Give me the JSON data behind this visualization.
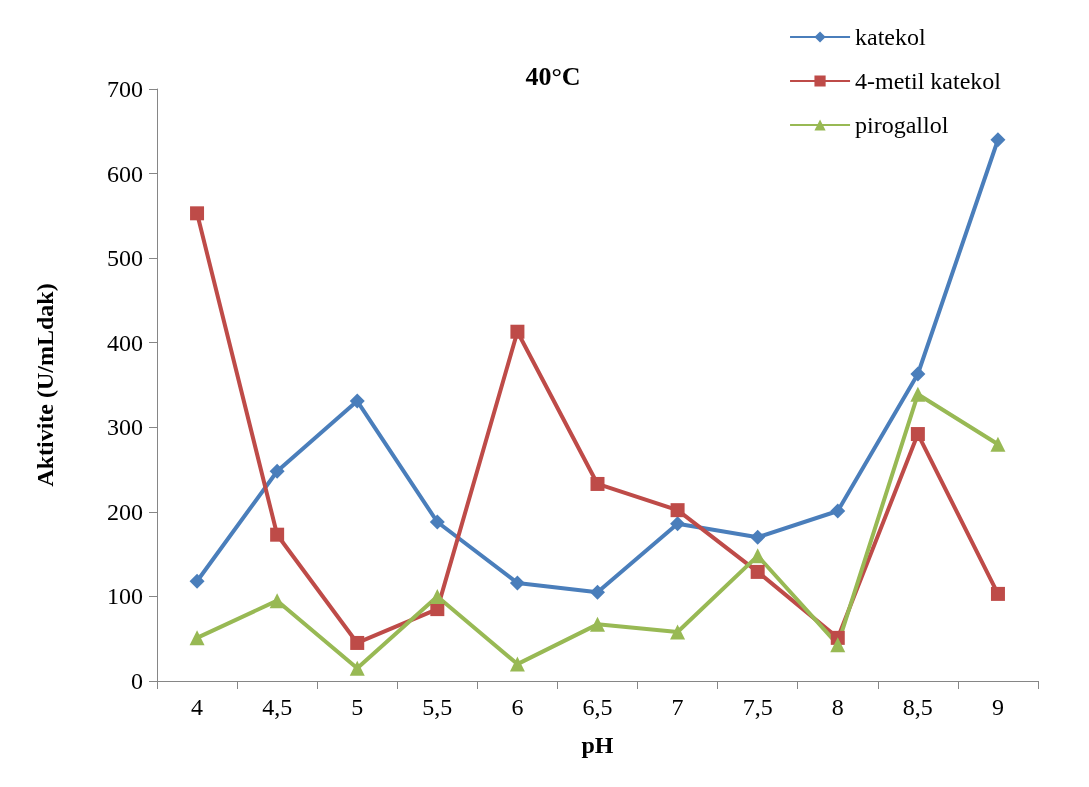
{
  "chart_data": {
    "type": "line",
    "title": "40°C",
    "xlabel": "pH",
    "ylabel": "Aktivite (U/mLdak)",
    "categories": [
      "4",
      "4,5",
      "5",
      "5,5",
      "6",
      "6,5",
      "7",
      "7,5",
      "8",
      "8,5",
      "9"
    ],
    "ylim": [
      0,
      700
    ],
    "yticks": [
      0,
      100,
      200,
      300,
      400,
      500,
      600,
      700
    ],
    "grid": false,
    "legend": "top right",
    "line_style": "solid",
    "series": [
      {
        "name": "katekol",
        "color": "#4a7ebb",
        "marker": "diamond",
        "values": [
          118,
          248,
          331,
          188,
          116,
          105,
          186,
          170,
          201,
          363,
          640
        ]
      },
      {
        "name": "4-metil katekol",
        "color": "#be4b48",
        "marker": "square",
        "values": [
          553,
          173,
          45,
          85,
          413,
          233,
          202,
          129,
          51,
          292,
          103
        ]
      },
      {
        "name": "pirogallol",
        "color": "#98b954",
        "marker": "triangle",
        "values": [
          51,
          95,
          15,
          100,
          20,
          67,
          58,
          148,
          43,
          339,
          280
        ]
      }
    ]
  }
}
